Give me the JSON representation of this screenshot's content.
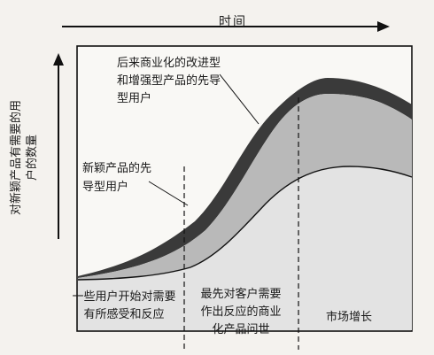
{
  "diagram": {
    "time_label": "时间",
    "y_axis_label": "对新颖产品有需要的用\n户的数量",
    "annotation_later_users": "后来商业化的改进型\n和增强型产品的先导\n型用户",
    "annotation_novel_users": "新颖产品的先\n导型用户",
    "phase_1": "一些用户开始对需要\n有所感受和反应",
    "phase_2": "最先对客户需要\n作出反应的商业\n化产品问世",
    "phase_3": "市场增长",
    "colors": {
      "background": "#f4f2ee",
      "outer_band": "#3a3a3a",
      "middle_band": "#b9b9b9",
      "inner_area": "#e3e3e3",
      "line": "#111111"
    }
  }
}
